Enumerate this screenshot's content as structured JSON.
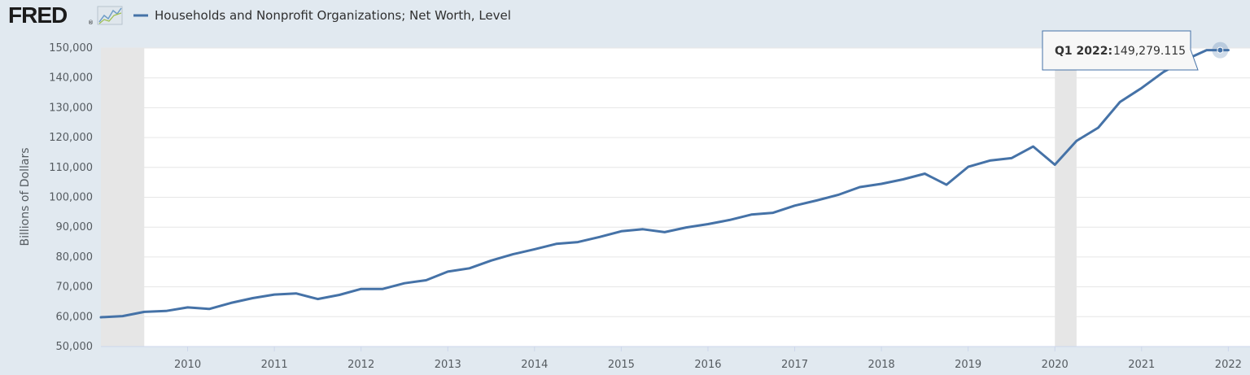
{
  "brand": {
    "logo_text": "FRED",
    "logo_mark": "®",
    "logo_icon": "trend-line-icon"
  },
  "chart_data": {
    "type": "line",
    "title": "",
    "ylabel": "Billions of Dollars",
    "xlabel": "",
    "ylim": [
      50000,
      150000
    ],
    "yticks": [
      50000,
      60000,
      70000,
      80000,
      90000,
      100000,
      110000,
      120000,
      130000,
      140000,
      150000
    ],
    "ytick_labels": [
      "50,000",
      "60,000",
      "70,000",
      "80,000",
      "90,000",
      "100,000",
      "110,000",
      "120,000",
      "130,000",
      "140,000",
      "150,000"
    ],
    "xlim": [
      2009.0,
      2022.25
    ],
    "xticks": [
      2010,
      2011,
      2012,
      2013,
      2014,
      2015,
      2016,
      2017,
      2018,
      2019,
      2020,
      2021,
      2022
    ],
    "xtick_labels": [
      "2010",
      "2011",
      "2012",
      "2013",
      "2014",
      "2015",
      "2016",
      "2017",
      "2018",
      "2019",
      "2020",
      "2021",
      "2022"
    ],
    "grid": true,
    "legend": "top-left",
    "recessions": [
      [
        2009.0,
        2009.5
      ],
      [
        2020.0,
        2020.25
      ]
    ],
    "series": [
      {
        "name": "Households and Nonprofit Organizations; Net Worth, Level",
        "color": "#4572a7",
        "x": [
          2009.0,
          2009.25,
          2009.5,
          2009.75,
          2010.0,
          2010.25,
          2010.5,
          2010.75,
          2011.0,
          2011.25,
          2011.5,
          2011.75,
          2012.0,
          2012.25,
          2012.5,
          2012.75,
          2013.0,
          2013.25,
          2013.5,
          2013.75,
          2014.0,
          2014.25,
          2014.5,
          2014.75,
          2015.0,
          2015.25,
          2015.5,
          2015.75,
          2016.0,
          2016.25,
          2016.5,
          2016.75,
          2017.0,
          2017.25,
          2017.5,
          2017.75,
          2018.0,
          2018.25,
          2018.5,
          2018.75,
          2019.0,
          2019.25,
          2019.5,
          2019.75,
          2020.0,
          2020.25,
          2020.5,
          2020.75,
          2021.0,
          2021.25,
          2021.5,
          2021.75,
          2022.0
        ],
        "values": [
          59800,
          60200,
          61600,
          61900,
          63100,
          62600,
          64600,
          66200,
          67400,
          67800,
          65900,
          67300,
          69300,
          69300,
          71200,
          72200,
          75100,
          76200,
          78800,
          80900,
          82600,
          84400,
          85000,
          86700,
          88600,
          89300,
          88300,
          89900,
          91000,
          92400,
          94200,
          94800,
          97200,
          98900,
          100800,
          103400,
          104500,
          106000,
          107900,
          104200,
          110200,
          112300,
          113100,
          117000,
          110900,
          118900,
          123300,
          131900,
          136600,
          141900,
          146000,
          149300,
          149279.115
        ]
      }
    ],
    "tooltip": {
      "label": "Q1 2022:",
      "value": "149,279.115"
    }
  }
}
